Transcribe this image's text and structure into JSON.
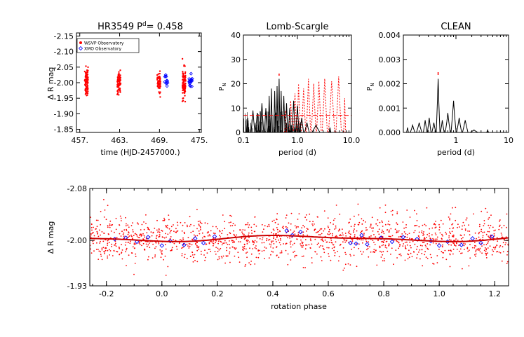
{
  "chart_data": [
    {
      "id": "timeseries",
      "type": "scatter",
      "title": "HR3549 P",
      "title_sup": "d",
      "title_suffix": "=  0.458",
      "xlabel": "time (HJD-2457000.)",
      "ylabel": "Δ R mag",
      "xlim": [
        456.5,
        475.3
      ],
      "ylim": [
        -2.16,
        -1.84
      ],
      "y_reversed": true,
      "xticks": [
        457,
        463,
        469,
        475
      ],
      "xtick_labels": [
        "457.",
        "463.",
        "469.",
        "475."
      ],
      "yticks": [
        -2.15,
        -2.1,
        -2.05,
        -2.0,
        -1.95,
        -1.9,
        -1.85
      ],
      "ytick_labels": [
        "-2.15",
        "-2.10",
        "-2.05",
        "-2.00",
        "-1.95",
        "-1.90",
        "-1.85"
      ],
      "legend": [
        "WSVP Observatory",
        "XMO Observatory"
      ],
      "legend_position": "top-left",
      "series": [
        {
          "name": "WSVP Observatory",
          "color": "#ff0000",
          "marker": "dot",
          "nights": [
            {
              "t": 458.0,
              "n": 90,
              "mean": -2.0,
              "sd": 0.022
            },
            {
              "t": 462.9,
              "n": 70,
              "mean": -2.0,
              "sd": 0.018
            },
            {
              "t": 468.9,
              "n": 55,
              "mean": -2.0,
              "sd": 0.016
            },
            {
              "t": 472.7,
              "n": 90,
              "mean": -2.0,
              "sd": 0.022
            }
          ]
        },
        {
          "name": "XMO Observatory",
          "color": "#0000ff",
          "marker": "diamond",
          "nights": [
            {
              "t": 470.0,
              "n": 12,
              "mean": -2.01,
              "sd": 0.012
            },
            {
              "t": 473.7,
              "n": 18,
              "mean": -2.0,
              "sd": 0.01
            }
          ]
        }
      ]
    },
    {
      "id": "lomb-scargle",
      "type": "line",
      "title": "Lomb-Scargle",
      "xlabel": "period (d)",
      "ylabel": "P",
      "ylabel_sub": "N",
      "xscale": "log",
      "xlim": [
        0.1,
        10.0
      ],
      "ylim": [
        0,
        40
      ],
      "xticks": [
        0.1,
        1.0,
        10.0
      ],
      "xtick_labels": [
        "0.1",
        "1.0",
        "10.0"
      ],
      "yticks": [
        0,
        10,
        20,
        30,
        40
      ],
      "ytick_labels": [
        "0",
        "10",
        "20",
        "30",
        "40"
      ],
      "significance_level": 7,
      "peak_period": 0.458,
      "peaks": [
        {
          "period": 0.12,
          "power": 6
        },
        {
          "period": 0.15,
          "power": 9
        },
        {
          "period": 0.18,
          "power": 8
        },
        {
          "period": 0.22,
          "power": 12
        },
        {
          "period": 0.26,
          "power": 10
        },
        {
          "period": 0.3,
          "power": 15
        },
        {
          "period": 0.33,
          "power": 18
        },
        {
          "period": 0.38,
          "power": 17
        },
        {
          "period": 0.42,
          "power": 19
        },
        {
          "period": 0.458,
          "power": 22
        },
        {
          "period": 0.5,
          "power": 17
        },
        {
          "period": 0.56,
          "power": 15
        },
        {
          "period": 0.63,
          "power": 12
        },
        {
          "period": 0.72,
          "power": 10
        },
        {
          "period": 0.85,
          "power": 13
        },
        {
          "period": 1.0,
          "power": 11
        },
        {
          "period": 1.2,
          "power": 6
        },
        {
          "period": 1.5,
          "power": 4
        },
        {
          "period": 2.2,
          "power": 3
        },
        {
          "period": 4.0,
          "power": 2
        }
      ],
      "window_peaks": [
        {
          "period": 0.6,
          "power": 9
        },
        {
          "period": 0.75,
          "power": 13
        },
        {
          "period": 0.9,
          "power": 16
        },
        {
          "period": 1.05,
          "power": 20
        },
        {
          "period": 1.3,
          "power": 18
        },
        {
          "period": 1.6,
          "power": 22
        },
        {
          "period": 2.0,
          "power": 20
        },
        {
          "period": 2.5,
          "power": 21
        },
        {
          "period": 3.2,
          "power": 22
        },
        {
          "period": 4.3,
          "power": 21
        },
        {
          "period": 5.8,
          "power": 23
        },
        {
          "period": 7.5,
          "power": 14
        }
      ]
    },
    {
      "id": "clean",
      "type": "line",
      "title": "CLEAN",
      "xlabel": "period (d)",
      "ylabel": "P",
      "ylabel_sub": "N",
      "xscale": "log",
      "xlim": [
        0.1,
        10.0
      ],
      "ylim": [
        0,
        0.004
      ],
      "xticks": [
        1,
        10
      ],
      "xtick_labels": [
        "1",
        "10"
      ],
      "yticks": [
        0,
        0.001,
        0.002,
        0.003,
        0.004
      ],
      "ytick_labels": [
        "0.000",
        "0.001",
        "0.002",
        "0.003",
        "0.004"
      ],
      "peak_period": 0.458,
      "peaks": [
        {
          "period": 0.12,
          "power": 0.0002
        },
        {
          "period": 0.15,
          "power": 0.0003
        },
        {
          "period": 0.2,
          "power": 0.0004
        },
        {
          "period": 0.26,
          "power": 0.0005
        },
        {
          "period": 0.31,
          "power": 0.0006
        },
        {
          "period": 0.38,
          "power": 0.0004
        },
        {
          "period": 0.458,
          "power": 0.0022
        },
        {
          "period": 0.55,
          "power": 0.0005
        },
        {
          "period": 0.7,
          "power": 0.0008
        },
        {
          "period": 0.9,
          "power": 0.0013
        },
        {
          "period": 1.15,
          "power": 0.0006
        },
        {
          "period": 1.5,
          "power": 0.0005
        },
        {
          "period": 2.2,
          "power": 0.0001
        },
        {
          "period": 4.0,
          "power": 0.0001
        }
      ]
    },
    {
      "id": "phase",
      "type": "scatter",
      "xlabel": "rotation phase",
      "ylabel": "Δ R mag",
      "xlim": [
        -0.26,
        1.25
      ],
      "ylim": [
        -2.08,
        -1.93
      ],
      "y_reversed": true,
      "xticks": [
        -0.2,
        0.0,
        0.2,
        0.4,
        0.6,
        0.8,
        1.0,
        1.2
      ],
      "xtick_labels": [
        "-0.2",
        "0.0",
        "0.2",
        "0.4",
        "0.6",
        "0.8",
        "1.0",
        "1.2"
      ],
      "yticks": [
        -2.08,
        -2.0,
        -1.93
      ],
      "ytick_labels": [
        "-2.08",
        "-2.00",
        "-1.93"
      ],
      "mean": -2.003,
      "scatter_sd": 0.018,
      "n_points": 1500,
      "fit_amplitude": 0.004,
      "fit_phase_max": 0.48,
      "blue_points": [
        {
          "phase": -0.17,
          "mag": -2.002
        },
        {
          "phase": -0.13,
          "mag": -2.004
        },
        {
          "phase": -0.09,
          "mag": -1.998
        },
        {
          "phase": -0.05,
          "mag": -2.005
        },
        {
          "phase": 0.0,
          "mag": -1.992
        },
        {
          "phase": 0.03,
          "mag": -1.999
        },
        {
          "phase": 0.08,
          "mag": -1.993
        },
        {
          "phase": 0.12,
          "mag": -2.003
        },
        {
          "phase": 0.15,
          "mag": -1.996
        },
        {
          "phase": 0.19,
          "mag": -2.006
        },
        {
          "phase": 0.45,
          "mag": -2.015
        },
        {
          "phase": 0.47,
          "mag": -2.008
        },
        {
          "phase": 0.5,
          "mag": -2.013
        },
        {
          "phase": 0.68,
          "mag": -1.996
        },
        {
          "phase": 0.7,
          "mag": -1.995
        },
        {
          "phase": 0.72,
          "mag": -2.008
        },
        {
          "phase": 0.74,
          "mag": -1.994
        },
        {
          "phase": 0.79,
          "mag": -2.004
        },
        {
          "phase": 0.83,
          "mag": -1.998
        },
        {
          "phase": 0.87,
          "mag": -2.005
        },
        {
          "phase": 0.92,
          "mag": -2.002
        },
        {
          "phase": 0.97,
          "mag": -1.999
        },
        {
          "phase": 1.0,
          "mag": -1.992
        },
        {
          "phase": 1.03,
          "mag": -1.998
        },
        {
          "phase": 1.08,
          "mag": -1.993
        },
        {
          "phase": 1.12,
          "mag": -2.003
        },
        {
          "phase": 1.15,
          "mag": -1.996
        },
        {
          "phase": 1.19,
          "mag": -2.006
        }
      ]
    }
  ]
}
